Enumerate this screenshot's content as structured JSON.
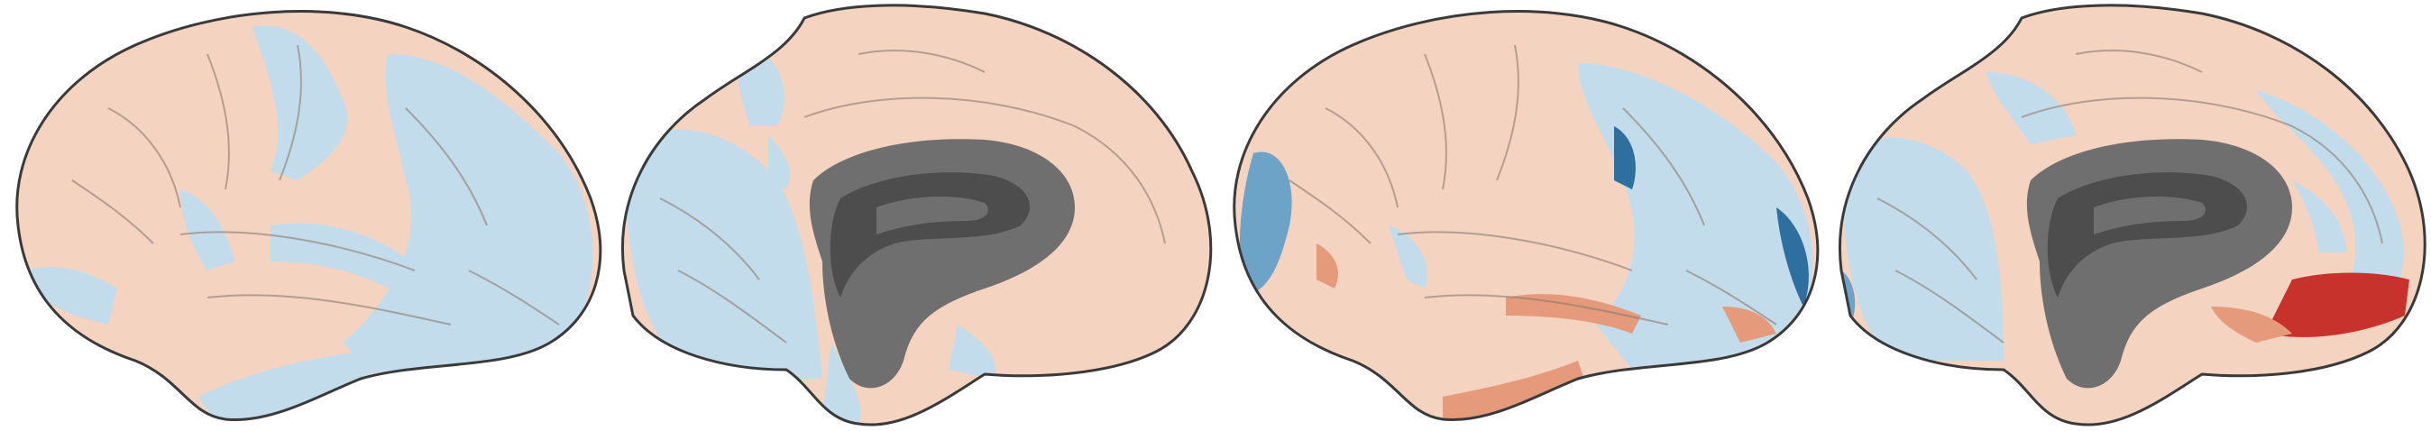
{
  "figure": {
    "panels": [
      {
        "view": "lateral"
      },
      {
        "view": "medial"
      },
      {
        "view": "lateral"
      },
      {
        "view": "medial"
      }
    ]
  },
  "colors": {
    "positive_weak": "#f4d3c0",
    "positive_mid": "#e59a7c",
    "positive_strong": "#c7322c",
    "negative_weak": "#c3dceb",
    "negative_mid": "#6ea3c8",
    "negative_strong": "#2f6f9f",
    "medial_wall": "#6f6f6f",
    "medial_wall_dark": "#4d4d4d",
    "outline": "#3a3a3a",
    "sulcus": "#8a7a70"
  }
}
